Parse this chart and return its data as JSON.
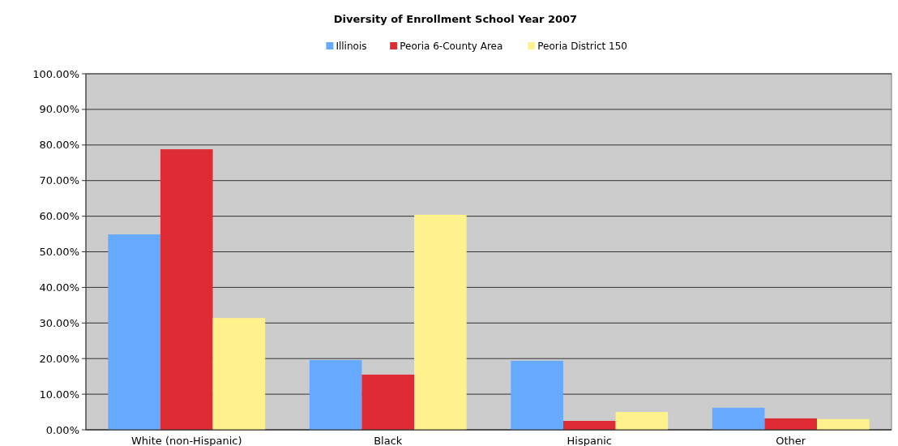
{
  "chart_data": {
    "type": "bar",
    "title": "Diversity of Enrollment School Year 2007",
    "categories": [
      "White (non-Hispanic)",
      "Black",
      "Hispanic",
      "Other"
    ],
    "series": [
      {
        "name": "Illinois",
        "color": "#66aaff",
        "values": [
          54.9,
          19.6,
          19.4,
          6.2
        ]
      },
      {
        "name": "Peoria 6-County Area",
        "color": "#dd2c33",
        "values": [
          78.8,
          15.5,
          2.5,
          3.2
        ]
      },
      {
        "name": "Peoria District 150",
        "color": "#fff28c",
        "values": [
          31.4,
          60.4,
          5.0,
          3.0
        ]
      }
    ],
    "ylim": [
      0,
      100
    ],
    "yticks": [
      {
        "value": 0,
        "label": "0.00%"
      },
      {
        "value": 10,
        "label": "10.00%"
      },
      {
        "value": 20,
        "label": "20.00%"
      },
      {
        "value": 30,
        "label": "30.00%"
      },
      {
        "value": 40,
        "label": "40.00%"
      },
      {
        "value": 50,
        "label": "50.00%"
      },
      {
        "value": 60,
        "label": "60.00%"
      },
      {
        "value": 70,
        "label": "70.00%"
      },
      {
        "value": 80,
        "label": "80.00%"
      },
      {
        "value": 90,
        "label": "90.00%"
      },
      {
        "value": 100,
        "label": "100.00%"
      }
    ],
    "grid": "y",
    "legend": "top"
  }
}
